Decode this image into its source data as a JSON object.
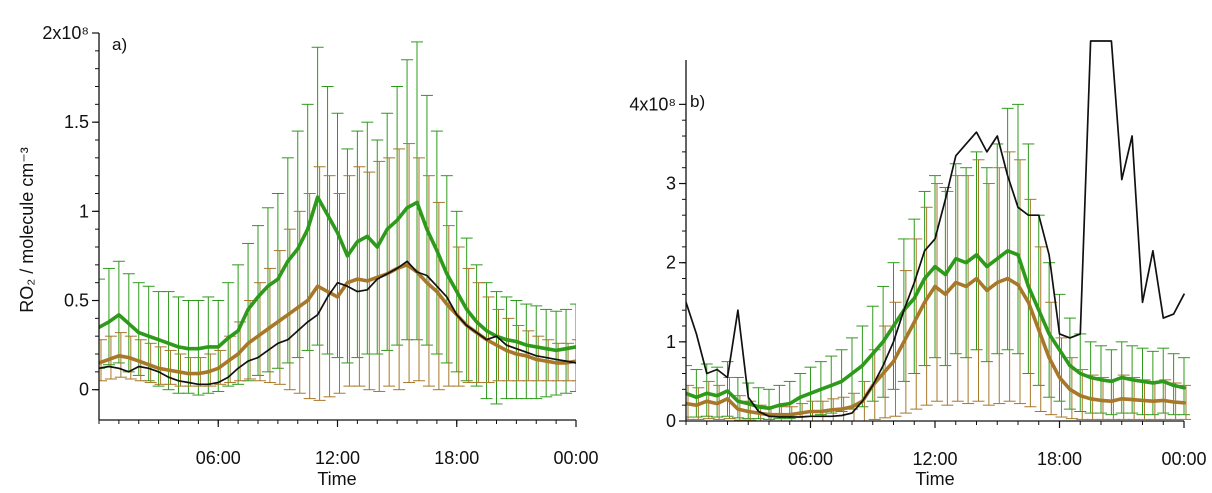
{
  "chart_data": [
    {
      "type": "line",
      "panel_label": "a)",
      "xlabel": "Time",
      "ylabel": "RO₂ / molecule cm⁻³",
      "x_ticks": [
        "06:00",
        "12:00",
        "18:00",
        "00:00"
      ],
      "x_tick_hours": [
        6,
        12,
        18,
        24
      ],
      "xlim_hours": [
        0,
        24
      ],
      "y_ticks": [
        "0",
        "0.5",
        "1",
        "1.5",
        "2x10⁸"
      ],
      "y_tick_values": [
        0,
        0.5,
        1,
        1.5,
        2
      ],
      "y_unit_multiplier": 100000000,
      "ylim": [
        -0.17,
        2.0
      ],
      "grid": false,
      "legend": "none",
      "x_hours": [
        0.0,
        0.5,
        1.0,
        1.5,
        2.0,
        2.5,
        3.0,
        3.5,
        4.0,
        4.5,
        5.0,
        5.5,
        6.0,
        6.5,
        7.0,
        7.5,
        8.0,
        8.5,
        9.0,
        9.5,
        10.0,
        10.5,
        11.0,
        11.5,
        12.0,
        12.5,
        13.0,
        13.5,
        14.0,
        14.5,
        15.0,
        15.5,
        16.0,
        16.5,
        17.0,
        17.5,
        18.0,
        18.5,
        19.0,
        19.5,
        20.0,
        20.5,
        21.0,
        21.5,
        22.0,
        22.5,
        23.0,
        23.5,
        24.0
      ],
      "series": [
        {
          "color": "#2e9a1b",
          "values": [
            0.35,
            0.38,
            0.42,
            0.37,
            0.32,
            0.3,
            0.28,
            0.26,
            0.24,
            0.23,
            0.23,
            0.24,
            0.24,
            0.29,
            0.33,
            0.45,
            0.52,
            0.58,
            0.62,
            0.72,
            0.79,
            0.9,
            1.08,
            0.98,
            0.88,
            0.75,
            0.83,
            0.86,
            0.8,
            0.9,
            0.95,
            1.02,
            1.05,
            0.9,
            0.78,
            0.65,
            0.55,
            0.45,
            0.38,
            0.33,
            0.3,
            0.28,
            0.27,
            0.25,
            0.24,
            0.23,
            0.22,
            0.23,
            0.24
          ],
          "error_low": [
            0.12,
            0.14,
            0.15,
            0.1,
            0.08,
            0.05,
            0.02,
            0.0,
            -0.02,
            -0.02,
            -0.03,
            -0.02,
            -0.01,
            0.02,
            0.03,
            0.05,
            0.08,
            0.1,
            0.12,
            0.15,
            0.18,
            0.22,
            0.25,
            0.2,
            0.18,
            0.15,
            0.18,
            0.2,
            0.2,
            0.22,
            0.25,
            0.28,
            0.28,
            0.25,
            0.2,
            0.15,
            0.1,
            0.05,
            0.02,
            -0.05,
            -0.08,
            -0.05,
            -0.05,
            -0.05,
            -0.05,
            -0.04,
            -0.03,
            -0.02,
            -0.01
          ],
          "error_high": [
            0.62,
            0.68,
            0.72,
            0.65,
            0.6,
            0.58,
            0.55,
            0.55,
            0.52,
            0.5,
            0.5,
            0.52,
            0.5,
            0.6,
            0.7,
            0.82,
            0.92,
            1.02,
            1.1,
            1.3,
            1.45,
            1.6,
            1.92,
            1.7,
            1.55,
            1.35,
            1.45,
            1.5,
            1.4,
            1.55,
            1.7,
            1.85,
            1.95,
            1.65,
            1.45,
            1.2,
            1.0,
            0.85,
            0.7,
            0.6,
            0.55,
            0.52,
            0.5,
            0.48,
            0.47,
            0.45,
            0.44,
            0.45,
            0.48
          ]
        },
        {
          "color": "#a7772a",
          "values": [
            0.15,
            0.17,
            0.19,
            0.18,
            0.16,
            0.14,
            0.12,
            0.11,
            0.1,
            0.09,
            0.09,
            0.1,
            0.12,
            0.16,
            0.2,
            0.26,
            0.3,
            0.34,
            0.38,
            0.42,
            0.46,
            0.5,
            0.58,
            0.55,
            0.52,
            0.6,
            0.62,
            0.61,
            0.63,
            0.65,
            0.68,
            0.7,
            0.66,
            0.6,
            0.55,
            0.48,
            0.42,
            0.36,
            0.32,
            0.28,
            0.25,
            0.22,
            0.2,
            0.19,
            0.17,
            0.16,
            0.15,
            0.15,
            0.16
          ],
          "error_low": [
            0.05,
            0.06,
            0.07,
            0.06,
            0.05,
            0.04,
            0.03,
            0.03,
            0.02,
            0.02,
            0.02,
            0.02,
            0.03,
            0.04,
            0.05,
            0.06,
            0.05,
            0.04,
            0.03,
            0.0,
            -0.02,
            -0.05,
            -0.06,
            -0.04,
            -0.02,
            0.02,
            0.02,
            0.0,
            -0.01,
            0.02,
            0.0,
            0.04,
            0.05,
            0.02,
            0.0,
            0.02,
            0.02,
            0.04,
            0.04,
            0.04,
            0.05,
            0.05,
            0.05,
            0.05,
            0.05,
            0.05,
            0.05,
            0.05,
            0.05
          ],
          "error_high": [
            0.28,
            0.3,
            0.32,
            0.3,
            0.28,
            0.26,
            0.24,
            0.22,
            0.2,
            0.18,
            0.18,
            0.2,
            0.22,
            0.3,
            0.38,
            0.5,
            0.6,
            0.68,
            0.78,
            0.9,
            1.0,
            1.1,
            1.25,
            1.2,
            1.1,
            1.2,
            1.25,
            1.22,
            1.28,
            1.3,
            1.35,
            1.38,
            1.3,
            1.2,
            1.05,
            0.92,
            0.8,
            0.68,
            0.6,
            0.52,
            0.45,
            0.4,
            0.36,
            0.33,
            0.3,
            0.28,
            0.26,
            0.26,
            0.28
          ]
        },
        {
          "color": "#111111",
          "values": [
            0.12,
            0.13,
            0.12,
            0.1,
            0.13,
            0.12,
            0.1,
            0.07,
            0.05,
            0.04,
            0.03,
            0.03,
            0.04,
            0.07,
            0.12,
            0.16,
            0.18,
            0.22,
            0.26,
            0.28,
            0.33,
            0.38,
            0.42,
            0.52,
            0.6,
            0.58,
            0.55,
            0.56,
            0.62,
            0.65,
            0.68,
            0.72,
            0.66,
            0.64,
            0.58,
            0.52,
            0.42,
            0.36,
            0.32,
            0.28,
            0.3,
            0.25,
            0.23,
            0.21,
            0.19,
            0.18,
            0.17,
            0.16,
            0.15
          ],
          "error_low": [],
          "error_high": []
        }
      ]
    },
    {
      "type": "line",
      "panel_label": "b)",
      "xlabel": "Time",
      "ylabel": "",
      "x_ticks": [
        "06:00",
        "12:00",
        "18:00",
        "00:00"
      ],
      "x_tick_hours": [
        6,
        12,
        18,
        24
      ],
      "xlim_hours": [
        0,
        24
      ],
      "y_ticks": [
        "0",
        "1",
        "2",
        "3",
        "4x10⁸"
      ],
      "y_tick_values": [
        0,
        1,
        2,
        3,
        4
      ],
      "y_unit_multiplier": 100000000,
      "ylim": [
        0,
        4.75
      ],
      "grid": false,
      "legend": "none",
      "x_hours": [
        0.0,
        0.5,
        1.0,
        1.5,
        2.0,
        2.5,
        3.0,
        3.5,
        4.0,
        4.5,
        5.0,
        5.5,
        6.0,
        6.5,
        7.0,
        7.5,
        8.0,
        8.5,
        9.0,
        9.5,
        10.0,
        10.5,
        11.0,
        11.5,
        12.0,
        12.5,
        13.0,
        13.5,
        14.0,
        14.5,
        15.0,
        15.5,
        16.0,
        16.5,
        17.0,
        17.5,
        18.0,
        18.5,
        19.0,
        19.5,
        20.0,
        20.5,
        21.0,
        21.5,
        22.0,
        22.5,
        23.0,
        23.5,
        24.0
      ],
      "series": [
        {
          "color": "#2e9a1b",
          "values": [
            0.35,
            0.3,
            0.35,
            0.32,
            0.38,
            0.25,
            0.22,
            0.18,
            0.16,
            0.2,
            0.22,
            0.3,
            0.35,
            0.4,
            0.45,
            0.5,
            0.6,
            0.7,
            0.85,
            1.0,
            1.2,
            1.4,
            1.55,
            1.8,
            1.95,
            1.85,
            2.05,
            2.0,
            2.1,
            1.95,
            2.05,
            2.15,
            2.1,
            1.7,
            1.4,
            1.1,
            0.9,
            0.7,
            0.6,
            0.55,
            0.52,
            0.5,
            0.55,
            0.52,
            0.5,
            0.48,
            0.5,
            0.45,
            0.42
          ],
          "error_low": [
            0.05,
            0.05,
            0.06,
            0.05,
            0.06,
            0.04,
            0.03,
            0.03,
            0.02,
            0.03,
            0.03,
            0.05,
            0.06,
            0.08,
            0.1,
            0.12,
            0.15,
            0.18,
            0.25,
            0.3,
            0.4,
            0.5,
            0.6,
            0.7,
            0.8,
            0.7,
            0.85,
            0.8,
            0.9,
            0.75,
            0.85,
            0.9,
            0.85,
            0.6,
            0.45,
            0.3,
            0.25,
            0.15,
            0.12,
            0.1,
            0.1,
            0.08,
            0.1,
            0.1,
            0.08,
            0.08,
            0.1,
            0.08,
            0.08
          ],
          "error_high": [
            0.7,
            0.65,
            0.72,
            0.68,
            0.75,
            0.55,
            0.48,
            0.42,
            0.4,
            0.45,
            0.5,
            0.6,
            0.68,
            0.75,
            0.82,
            0.9,
            1.05,
            1.2,
            1.45,
            1.7,
            2.0,
            2.3,
            2.55,
            2.9,
            3.1,
            2.95,
            3.25,
            3.2,
            3.4,
            3.2,
            3.5,
            3.95,
            4.0,
            3.5,
            2.6,
            2.0,
            1.6,
            1.3,
            1.1,
            1.0,
            0.95,
            0.9,
            1.0,
            0.95,
            0.92,
            0.88,
            0.92,
            0.85,
            0.8
          ]
        },
        {
          "color": "#a7772a",
          "values": [
            0.22,
            0.2,
            0.25,
            0.22,
            0.28,
            0.15,
            0.12,
            0.1,
            0.08,
            0.08,
            0.08,
            0.1,
            0.12,
            0.12,
            0.14,
            0.15,
            0.18,
            0.25,
            0.45,
            0.6,
            0.75,
            1.0,
            1.25,
            1.5,
            1.7,
            1.6,
            1.75,
            1.7,
            1.8,
            1.65,
            1.75,
            1.8,
            1.72,
            1.5,
            1.15,
            0.8,
            0.55,
            0.4,
            0.32,
            0.28,
            0.26,
            0.25,
            0.28,
            0.27,
            0.26,
            0.25,
            0.26,
            0.24,
            0.23
          ],
          "error_low": [
            0.02,
            0.02,
            0.03,
            0.02,
            0.03,
            0.01,
            0.01,
            0.0,
            0.0,
            0.0,
            0.0,
            0.0,
            0.0,
            0.0,
            0.0,
            0.0,
            0.0,
            0.0,
            0.02,
            0.04,
            0.06,
            0.1,
            0.15,
            0.2,
            0.25,
            0.2,
            0.25,
            0.22,
            0.25,
            0.2,
            0.22,
            0.25,
            0.22,
            0.18,
            0.12,
            0.08,
            0.05,
            0.03,
            0.02,
            0.02,
            0.02,
            0.02,
            0.02,
            0.02,
            0.02,
            0.02,
            0.02,
            0.02,
            0.02
          ],
          "error_high": [
            0.45,
            0.42,
            0.5,
            0.45,
            0.55,
            0.32,
            0.25,
            0.2,
            0.18,
            0.18,
            0.18,
            0.22,
            0.25,
            0.25,
            0.28,
            0.3,
            0.35,
            0.5,
            0.9,
            1.2,
            1.5,
            1.9,
            2.3,
            2.7,
            3.0,
            2.9,
            3.1,
            3.1,
            3.3,
            3.0,
            3.2,
            3.4,
            3.3,
            2.8,
            2.2,
            1.5,
            1.05,
            0.8,
            0.65,
            0.58,
            0.55,
            0.52,
            0.58,
            0.55,
            0.52,
            0.5,
            0.52,
            0.48,
            0.45
          ]
        },
        {
          "color": "#111111",
          "values": [
            1.5,
            1.1,
            0.6,
            0.65,
            0.55,
            1.4,
            0.3,
            0.12,
            0.06,
            0.05,
            0.05,
            0.05,
            0.06,
            0.06,
            0.06,
            0.07,
            0.1,
            0.25,
            0.45,
            0.7,
            1.0,
            1.4,
            1.75,
            2.15,
            2.3,
            2.8,
            3.35,
            3.5,
            3.65,
            3.4,
            3.6,
            3.1,
            2.7,
            2.6,
            2.6,
            2.1,
            1.1,
            1.05,
            1.1,
            4.8,
            4.8,
            4.8,
            3.05,
            3.6,
            1.5,
            2.15,
            1.3,
            1.35,
            1.6
          ],
          "error_low": [],
          "error_high": []
        }
      ]
    }
  ]
}
